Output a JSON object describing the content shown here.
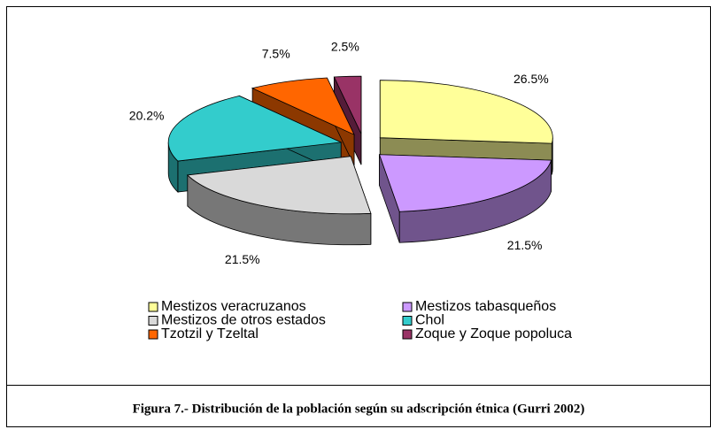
{
  "chart_data": {
    "type": "pie3d",
    "caption": "Figura 7.- Distribución de la población según su adscripción étnica (Gurri 2002)",
    "categories": [
      "Mestizos veracruzanos",
      "Mestizos tabasqueños",
      "Mestizos de otros estados",
      "Chol",
      "Tzotzil y Tzeltal",
      "Zoque y Zoque popoluca"
    ],
    "values": [
      26.5,
      21.5,
      21.5,
      20.2,
      7.5,
      2.5
    ],
    "value_labels": [
      "26.5%",
      "21.5%",
      "21.5%",
      "20.2%",
      "7.5%",
      "2.5%"
    ],
    "colors": [
      "#ffff99",
      "#cc99ff",
      "#d9d9d9",
      "#33cccc",
      "#ff6600",
      "#993366"
    ]
  }
}
